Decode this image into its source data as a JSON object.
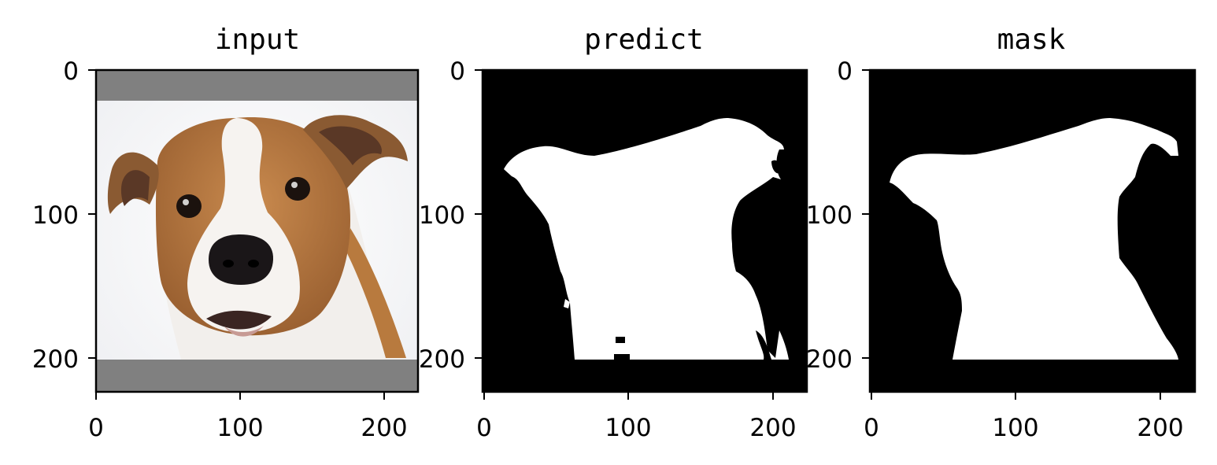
{
  "figure": {
    "panels": [
      {
        "title": "input",
        "kind": "photo"
      },
      {
        "title": "predict",
        "kind": "mask"
      },
      {
        "title": "mask",
        "kind": "mask"
      }
    ]
  },
  "chart_data": [
    {
      "type": "heatmap",
      "title": "input",
      "xlim": [
        0,
        224
      ],
      "ylim": [
        224,
        0
      ],
      "xticks": [
        0,
        100,
        200
      ],
      "yticks": [
        0,
        100,
        200
      ],
      "xtick_labels": [
        "0",
        "100",
        "200"
      ],
      "ytick_labels": [
        "0",
        "100",
        "200"
      ],
      "image": "photo of a brown-and-white dog head on white background, gray padding bands rows 0-20 and 200-224"
    },
    {
      "type": "heatmap",
      "title": "predict",
      "xlim": [
        0,
        224
      ],
      "ylim": [
        224,
        0
      ],
      "xticks": [
        0,
        100,
        200
      ],
      "yticks": [
        0,
        100,
        200
      ],
      "xtick_labels": [
        "0",
        "100",
        "200"
      ],
      "ytick_labels": [
        "0",
        "100",
        "200"
      ],
      "image": "binary segmentation mask, white dog silhouette on black"
    },
    {
      "type": "heatmap",
      "title": "mask",
      "xlim": [
        0,
        224
      ],
      "ylim": [
        224,
        0
      ],
      "xticks": [
        0,
        100,
        200
      ],
      "yticks": [
        0,
        100,
        200
      ],
      "xtick_labels": [
        "0",
        "100",
        "200"
      ],
      "ytick_labels": [
        "0",
        "100",
        "200"
      ],
      "image": "ground-truth binary mask, white dog silhouette on black"
    }
  ],
  "colors": {
    "padding": "#808080",
    "background": "#ffffff",
    "mask_fg": "#ffffff",
    "mask_bg": "#000000"
  }
}
